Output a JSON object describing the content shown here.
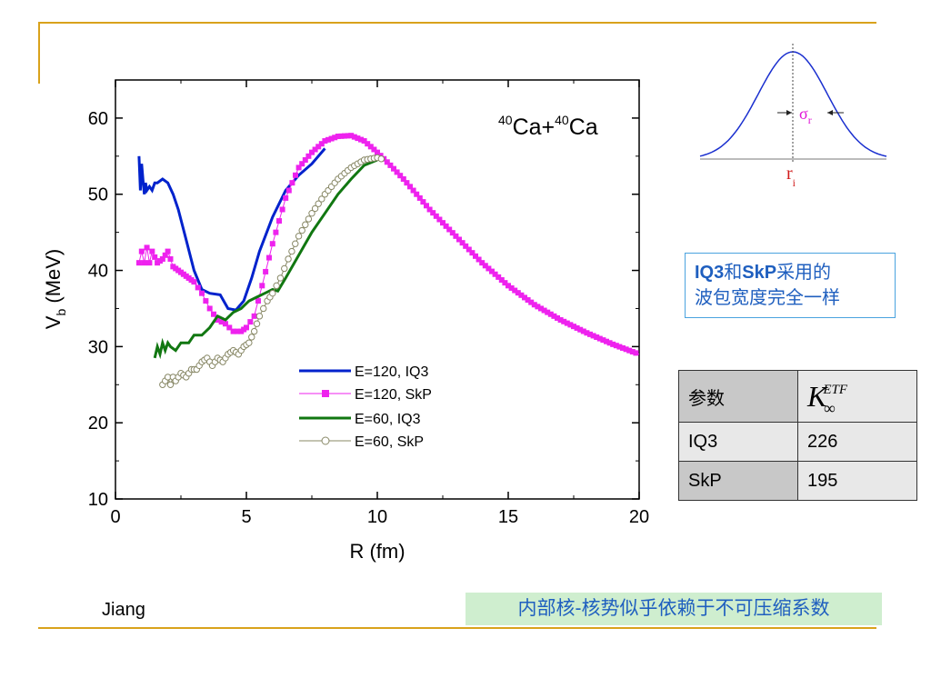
{
  "colors": {
    "accent_rule": "#d9a21b",
    "blue": "#0022cc",
    "magenta": "#ee22ee",
    "green": "#117711",
    "olive": "#888866",
    "note_text": "#1f5fbf",
    "note_bg": "#cfeecf"
  },
  "chart_data": {
    "type": "line",
    "annotation": {
      "ca_mass1": "40",
      "ca_label1": "Ca+",
      "ca_mass2": "40",
      "ca_label2": "Ca"
    },
    "xlabel": "R (fm)",
    "ylabel_main": "V",
    "ylabel_sub": "b",
    "ylabel_unit": " (MeV)",
    "xlim": [
      0,
      20
    ],
    "ylim": [
      10,
      65
    ],
    "xticks": [
      0,
      5,
      10,
      15,
      20
    ],
    "yticks": [
      10,
      20,
      30,
      40,
      50,
      60
    ],
    "legend_position": "center-left",
    "series": [
      {
        "name": "E=120, IQ3",
        "color": "#0022cc",
        "marker": "none",
        "width": 3,
        "x": [
          0.9,
          0.95,
          1.0,
          1.05,
          1.1,
          1.15,
          1.2,
          1.3,
          1.4,
          1.5,
          1.6,
          1.8,
          2.0,
          2.2,
          2.4,
          2.7,
          3.0,
          3.3,
          3.6,
          4.0,
          4.3,
          4.6,
          4.9,
          5.2,
          5.5,
          6.0,
          6.5,
          7.0,
          7.5,
          8.0
        ],
        "y": [
          55,
          50.5,
          54,
          52,
          50,
          51.5,
          50.5,
          51,
          50.5,
          51.5,
          51.5,
          52,
          51.5,
          50,
          48,
          44,
          40,
          37.5,
          37,
          36.8,
          35,
          34.8,
          36,
          39,
          42.5,
          47,
          50.5,
          52.5,
          54,
          56
        ]
      },
      {
        "name": "E=120, SkP",
        "color": "#ee22ee",
        "marker": "square",
        "width": 1,
        "x": [
          0.9,
          1.0,
          1.1,
          1.2,
          1.3,
          1.4,
          1.6,
          1.8,
          2.0,
          2.2,
          2.4,
          2.6,
          2.8,
          3.0,
          3.3,
          3.6,
          3.9,
          4.2,
          4.5,
          4.8,
          5.0,
          5.3,
          5.6,
          6.0,
          6.5,
          7.0,
          7.5,
          8.0,
          8.5,
          9.0,
          9.5,
          10.0,
          10.5,
          11.0,
          11.5,
          12.0,
          13.0,
          14.0,
          15.0,
          16.0,
          17.0,
          18.0,
          19.0,
          20.0
        ],
        "y": [
          41,
          42.5,
          41,
          43,
          41,
          42.5,
          41,
          41.5,
          42.5,
          40.5,
          40,
          39.5,
          39,
          38.5,
          37,
          35,
          33.5,
          33,
          32,
          32,
          32.5,
          34,
          38,
          43.5,
          49.5,
          53.5,
          55.5,
          57,
          57.6,
          57.7,
          57,
          55.5,
          53.8,
          52,
          50,
          48,
          44.5,
          41,
          38,
          35.5,
          33.5,
          31.8,
          30.3,
          29
        ]
      },
      {
        "name": "E=60, IQ3",
        "color": "#117711",
        "marker": "none",
        "width": 3,
        "x": [
          1.5,
          1.6,
          1.7,
          1.8,
          1.9,
          2.0,
          2.1,
          2.3,
          2.5,
          2.8,
          3.0,
          3.3,
          3.6,
          3.9,
          4.2,
          4.5,
          4.8,
          5.1,
          5.4,
          5.7,
          6.0,
          6.2,
          6.5,
          7.0,
          7.5,
          8.0,
          8.5,
          9.0,
          9.5,
          10.0
        ],
        "y": [
          28.5,
          30,
          29,
          30.5,
          29.5,
          30.5,
          30,
          29.5,
          30.5,
          30.5,
          31.5,
          31.5,
          32.5,
          34,
          33.5,
          34.5,
          35,
          36,
          36.5,
          37,
          37.5,
          37.3,
          39,
          42,
          45,
          47.5,
          50,
          52,
          53.8,
          54.5
        ]
      },
      {
        "name": "E=60, SkP",
        "color": "#888866",
        "marker": "circle",
        "width": 1,
        "x": [
          1.8,
          1.9,
          2.0,
          2.1,
          2.2,
          2.3,
          2.5,
          2.7,
          2.9,
          3.1,
          3.3,
          3.5,
          3.7,
          3.9,
          4.1,
          4.3,
          4.5,
          4.7,
          4.9,
          5.1,
          5.3,
          5.5,
          5.8,
          6.0,
          6.3,
          6.6,
          7.0,
          7.5,
          8.0,
          8.5,
          9.0,
          9.5,
          10.0,
          10.3
        ],
        "y": [
          25,
          25.5,
          26,
          25,
          26,
          25.5,
          26.5,
          26,
          27,
          27,
          28,
          28.5,
          27.5,
          28.5,
          28,
          29,
          29.5,
          29,
          30,
          30.5,
          32,
          34,
          36,
          37,
          39,
          41.5,
          44.5,
          47.5,
          50,
          52,
          53.5,
          54.5,
          54.8,
          54.5
        ]
      }
    ],
    "legend": [
      {
        "label": "E=120, IQ3"
      },
      {
        "label": "E=120, SkP"
      },
      {
        "label": "E=60, IQ3"
      },
      {
        "label": "E=60, SkP"
      }
    ]
  },
  "inset": {
    "sigma_label": "σ",
    "sigma_sub": "r",
    "center_label": "r",
    "center_sub": "i"
  },
  "note": {
    "line1_b1": "IQ3",
    "line1_t1": "和",
    "line1_b2": "SkP",
    "line1_t2": "采用的",
    "line2": "波包宽度完全一样"
  },
  "table": {
    "header": {
      "col1": "参数",
      "k_symbol": "K",
      "k_sup": "ETF",
      "k_sub": "∞"
    },
    "rows": [
      {
        "name": "IQ3",
        "value": "226"
      },
      {
        "name": "SkP",
        "value": "195"
      }
    ]
  },
  "footer": {
    "author": "Jiang",
    "conclusion": "内部核-核势似乎依赖于不可压缩系数"
  }
}
